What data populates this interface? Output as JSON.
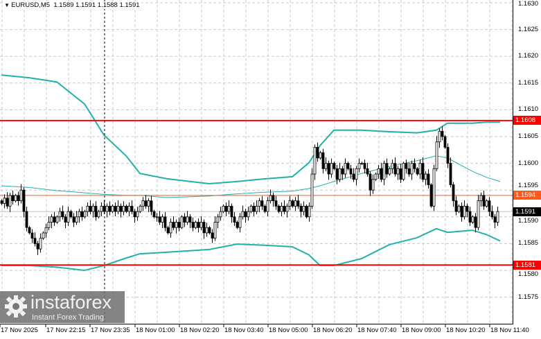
{
  "header": {
    "symbol": "EURUSD,M5",
    "open": "1.1589",
    "high": "1.1591",
    "low": "1.1588",
    "close": "1.1591"
  },
  "price_axis": {
    "labels": [
      "1.1630",
      "1.1625",
      "1.1620",
      "1.1615",
      "1.1610",
      "1.1605",
      "1.1600",
      "1.1595",
      "1.1590",
      "1.1585",
      "1.1580",
      "1.1575"
    ]
  },
  "time_axis": {
    "labels": [
      "17 Nov 2025",
      "17 Nov 22:15",
      "17 Nov 23:35",
      "18 Nov 01:00",
      "18 Nov 02:20",
      "18 Nov 03:40",
      "18 Nov 05:00",
      "18 Nov 06:20",
      "18 Nov 07:40",
      "18 Nov 09:00",
      "18 Nov 10:20",
      "18 Nov 11:40"
    ]
  },
  "levels": {
    "resistance": {
      "label": "1.1608",
      "value": 1.1608,
      "color": "#ff0000"
    },
    "pivot": {
      "label": "1.1594",
      "value": 1.1594,
      "color": "#ff5a1a"
    },
    "support": {
      "label": "1.1581",
      "value": 1.1581,
      "color": "#ff0000"
    },
    "bid": {
      "label": "1.1591",
      "value": 1.1591,
      "color": "#000000"
    }
  },
  "logo": {
    "name": "instaforex",
    "tagline": "Instant Forex Trading"
  },
  "colors": {
    "band": "#20b2aa",
    "grid": "#c0c0c0"
  },
  "chart_data": {
    "type": "candlestick",
    "ylim": [
      1.15715,
      1.163
    ],
    "closes": [
      1.15925,
      1.15935,
      1.1592,
      1.1594,
      1.1593,
      1.1594,
      1.1593,
      1.1595,
      1.1591,
      1.1588,
      1.1587,
      1.1586,
      1.1585,
      1.1584,
      1.1586,
      1.1587,
      1.1588,
      1.1589,
      1.159,
      1.1589,
      1.159,
      1.1591,
      1.159,
      1.1589,
      1.1591,
      1.159,
      1.1589,
      1.159,
      1.1591,
      1.159,
      1.1591,
      1.1592,
      1.1591,
      1.1592,
      1.159,
      1.1591,
      1.1592,
      1.1591,
      1.1592,
      1.1591,
      1.1592,
      1.1591,
      1.1592,
      1.1591,
      1.1592,
      1.1591,
      1.1592,
      1.1591,
      1.159,
      1.1591,
      1.1592,
      1.1593,
      1.1592,
      1.1593,
      1.1591,
      1.159,
      1.159,
      1.1589,
      1.159,
      1.1588,
      1.1587,
      1.1589,
      1.1588,
      1.1589,
      1.1588,
      1.159,
      1.1589,
      1.159,
      1.1589,
      1.1588,
      1.1589,
      1.1588,
      1.1589,
      1.1587,
      1.1588,
      1.1587,
      1.1586,
      1.1589,
      1.159,
      1.1591,
      1.1592,
      1.1591,
      1.1592,
      1.159,
      1.1589,
      1.1588,
      1.159,
      1.1591,
      1.159,
      1.1591,
      1.1592,
      1.1591,
      1.1592,
      1.1593,
      1.1592,
      1.1591,
      1.1593,
      1.1594,
      1.1593,
      1.1592,
      1.1591,
      1.1592,
      1.1591,
      1.1592,
      1.1593,
      1.1592,
      1.1593,
      1.1592,
      1.1591,
      1.1592,
      1.159,
      1.1592,
      1.1598,
      1.1603,
      1.1601,
      1.1602,
      1.1599,
      1.16,
      1.1598,
      1.16,
      1.1599,
      1.1597,
      1.1599,
      1.1598,
      1.16,
      1.1599,
      1.1598,
      1.1597,
      1.1599,
      1.16,
      1.16,
      1.1599,
      1.1598,
      1.1595,
      1.1597,
      1.1598,
      1.1599,
      1.1597,
      1.16,
      1.1598,
      1.1599,
      1.16,
      1.1598,
      1.1599,
      1.1597,
      1.16,
      1.1599,
      1.1598,
      1.16,
      1.1599,
      1.1598,
      1.16,
      1.1597,
      1.1598,
      1.1596,
      1.1592,
      1.1599,
      1.1604,
      1.1606,
      1.1605,
      1.1603,
      1.16,
      1.1596,
      1.1593,
      1.1591,
      1.1592,
      1.159,
      1.1592,
      1.1591,
      1.1589,
      1.159,
      1.1588,
      1.1593,
      1.1594,
      1.1592,
      1.1593,
      1.1591,
      1.159,
      1.1589,
      1.1591
    ],
    "bollinger": {
      "bar_index": [
        0,
        10,
        20,
        30,
        37,
        45,
        50,
        60,
        75,
        85,
        95,
        105,
        111,
        115,
        120,
        130,
        140,
        150,
        157,
        161,
        170,
        175,
        180
      ],
      "upper": [
        1.16165,
        1.1616,
        1.16152,
        1.16111,
        1.16053,
        1.16014,
        1.15981,
        1.15971,
        1.15962,
        1.15966,
        1.15971,
        1.15975,
        1.16001,
        1.16033,
        1.16062,
        1.16062,
        1.16059,
        1.16057,
        1.16062,
        1.16075,
        1.16075,
        1.16077,
        1.16077
      ],
      "middle": [
        1.15958,
        1.15955,
        1.15949,
        1.15945,
        1.15942,
        1.1594,
        1.1594,
        1.15936,
        1.15939,
        1.15943,
        1.15946,
        1.15948,
        1.15953,
        1.15958,
        1.15966,
        1.15981,
        1.15994,
        1.16005,
        1.16014,
        1.1601,
        1.15985,
        1.15974,
        1.15966
      ],
      "lower": [
        1.15809,
        1.15809,
        1.15806,
        1.158,
        1.15809,
        1.15823,
        1.15831,
        1.15834,
        1.15839,
        1.15849,
        1.15847,
        1.15844,
        1.15829,
        1.15809,
        1.15809,
        1.15822,
        1.15848,
        1.15861,
        1.15878,
        1.15871,
        1.15875,
        1.15867,
        1.15855
      ]
    }
  }
}
